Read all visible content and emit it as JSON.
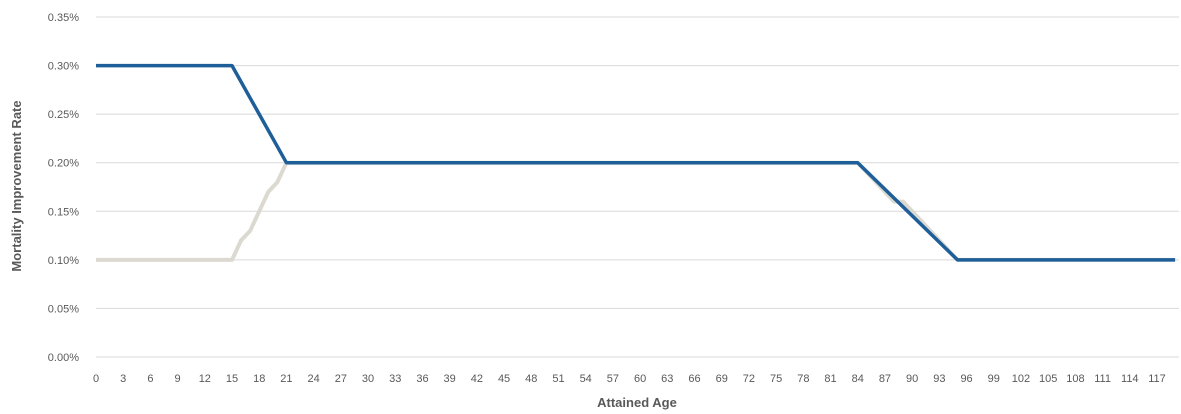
{
  "chart_data": {
    "type": "line",
    "title": "",
    "xlabel": "Attained Age",
    "ylabel": "Mortality Improvement Rate",
    "ylim": [
      0,
      0.35
    ],
    "y_ticks": [
      0,
      0.05,
      0.1,
      0.15,
      0.2,
      0.25,
      0.3,
      0.35
    ],
    "y_tick_labels": [
      "0.00%",
      "0.05%",
      "0.10%",
      "0.15%",
      "0.20%",
      "0.25%",
      "0.30%",
      "0.35%"
    ],
    "x_ticks": [
      0,
      3,
      6,
      9,
      12,
      15,
      18,
      21,
      24,
      27,
      30,
      33,
      36,
      39,
      42,
      45,
      48,
      51,
      54,
      57,
      60,
      63,
      66,
      69,
      72,
      75,
      78,
      81,
      84,
      87,
      90,
      93,
      96,
      99,
      102,
      105,
      108,
      111,
      114,
      117
    ],
    "x_tick_labels": [
      "0",
      "3",
      "6",
      "9",
      "12",
      "15",
      "18",
      "21",
      "24",
      "27",
      "30",
      "33",
      "36",
      "39",
      "42",
      "45",
      "48",
      "51",
      "54",
      "57",
      "60",
      "63",
      "66",
      "69",
      "72",
      "75",
      "78",
      "81",
      "84",
      "87",
      "90",
      "93",
      "96",
      "99",
      "102",
      "105",
      "108",
      "111",
      "114",
      "117"
    ],
    "xlim": [
      0,
      119
    ],
    "grid": true,
    "legend": "none",
    "series": [
      {
        "color": "#1f5f99",
        "points": [
          [
            0,
            0.3
          ],
          [
            15,
            0.3
          ],
          [
            21,
            0.2
          ],
          [
            84,
            0.2
          ],
          [
            95,
            0.1
          ],
          [
            119,
            0.1
          ]
        ]
      },
      {
        "color": "#dcdad0",
        "points": [
          [
            0,
            0.1
          ],
          [
            15,
            0.1
          ],
          [
            16,
            0.12
          ],
          [
            17,
            0.13
          ],
          [
            18,
            0.15
          ],
          [
            19,
            0.17
          ],
          [
            20,
            0.18
          ],
          [
            21,
            0.2
          ],
          [
            84,
            0.2
          ],
          [
            85,
            0.19
          ],
          [
            86,
            0.18
          ],
          [
            87,
            0.17
          ],
          [
            88,
            0.16
          ],
          [
            89,
            0.16
          ],
          [
            90,
            0.15
          ],
          [
            95,
            0.1
          ],
          [
            119,
            0.1
          ]
        ]
      }
    ]
  }
}
